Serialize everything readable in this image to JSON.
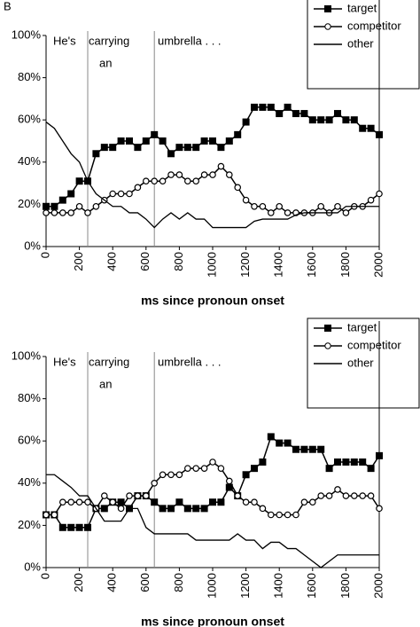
{
  "panel_label": "B",
  "chart_data": [
    {
      "type": "line",
      "annotations": [
        "He's",
        "carrying",
        "an",
        "umbrella . . ."
      ],
      "vlines": [
        250,
        650
      ],
      "x_label": "ms since pronoun onset",
      "x": [
        0,
        50,
        100,
        150,
        200,
        250,
        300,
        350,
        400,
        450,
        500,
        550,
        600,
        650,
        700,
        750,
        800,
        850,
        900,
        950,
        1000,
        1050,
        1100,
        1150,
        1200,
        1250,
        1300,
        1350,
        1400,
        1450,
        1500,
        1550,
        1600,
        1650,
        1700,
        1750,
        1800,
        1850,
        1900,
        1950,
        2000
      ],
      "xlim": [
        0,
        2000
      ],
      "xticks": [
        0,
        200,
        400,
        600,
        800,
        1000,
        1200,
        1400,
        1600,
        1800,
        2000
      ],
      "ylim": [
        0,
        100
      ],
      "yticks": [
        {
          "value": 0,
          "label": "0%"
        },
        {
          "value": 20,
          "label": "20%"
        },
        {
          "value": 40,
          "label": "40%"
        },
        {
          "value": 60,
          "label": "60%"
        },
        {
          "value": 80,
          "label": "80%"
        },
        {
          "value": 100,
          "label": "100%"
        }
      ],
      "series": [
        {
          "name": "target",
          "color": "#000000",
          "marker": "square",
          "values": [
            19,
            19,
            22,
            25,
            31,
            31,
            44,
            47,
            47,
            50,
            50,
            47,
            50,
            53,
            50,
            44,
            47,
            47,
            47,
            50,
            50,
            47,
            50,
            53,
            59,
            66,
            66,
            66,
            63,
            66,
            63,
            63,
            60,
            60,
            60,
            63,
            60,
            60,
            56,
            56,
            53
          ]
        },
        {
          "name": "competitor",
          "color": "#000000",
          "marker": "circle",
          "values": [
            16,
            16,
            16,
            16,
            19,
            16,
            19,
            22,
            25,
            25,
            25,
            28,
            31,
            31,
            31,
            34,
            34,
            31,
            31,
            34,
            34,
            38,
            34,
            28,
            22,
            19,
            19,
            16,
            19,
            16,
            16,
            16,
            16,
            19,
            16,
            19,
            16,
            19,
            19,
            22,
            25
          ]
        },
        {
          "name": "other",
          "color": "#000000",
          "marker": null,
          "values": [
            59,
            56,
            50,
            44,
            40,
            31,
            25,
            22,
            19,
            19,
            16,
            16,
            13,
            9,
            13,
            16,
            13,
            16,
            13,
            13,
            9,
            9,
            9,
            9,
            9,
            12,
            13,
            13,
            13,
            13,
            15,
            16,
            16,
            16,
            16,
            16,
            19,
            19,
            19,
            19,
            19
          ]
        }
      ]
    },
    {
      "type": "line",
      "annotations": [
        "He's",
        "carrying",
        "an",
        "umbrella . . ."
      ],
      "vlines": [
        250,
        650
      ],
      "x_label": "ms since pronoun onset",
      "x": [
        0,
        50,
        100,
        150,
        200,
        250,
        300,
        350,
        400,
        450,
        500,
        550,
        600,
        650,
        700,
        750,
        800,
        850,
        900,
        950,
        1000,
        1050,
        1100,
        1150,
        1200,
        1250,
        1300,
        1350,
        1400,
        1450,
        1500,
        1550,
        1600,
        1650,
        1700,
        1750,
        1800,
        1850,
        1900,
        1950,
        2000
      ],
      "xlim": [
        0,
        2000
      ],
      "xticks": [
        0,
        200,
        400,
        600,
        800,
        1000,
        1200,
        1400,
        1600,
        1800,
        2000
      ],
      "ylim": [
        0,
        100
      ],
      "yticks": [
        {
          "value": 0,
          "label": "0%"
        },
        {
          "value": 20,
          "label": "20%"
        },
        {
          "value": 40,
          "label": "40%"
        },
        {
          "value": 60,
          "label": "60%"
        },
        {
          "value": 80,
          "label": "80%"
        },
        {
          "value": 100,
          "label": "100%"
        }
      ],
      "series": [
        {
          "name": "target",
          "color": "#000000",
          "marker": "square",
          "values": [
            25,
            25,
            19,
            19,
            19,
            19,
            28,
            28,
            31,
            31,
            28,
            34,
            34,
            31,
            28,
            28,
            31,
            28,
            28,
            28,
            31,
            31,
            38,
            34,
            44,
            47,
            50,
            62,
            59,
            59,
            56,
            56,
            56,
            56,
            47,
            50,
            50,
            50,
            50,
            47,
            53
          ]
        },
        {
          "name": "competitor",
          "color": "#000000",
          "marker": "circle",
          "values": [
            25,
            25,
            31,
            31,
            31,
            31,
            28,
            34,
            31,
            28,
            34,
            34,
            34,
            40,
            44,
            44,
            44,
            47,
            47,
            47,
            50,
            47,
            41,
            34,
            31,
            31,
            28,
            25,
            25,
            25,
            25,
            31,
            31,
            34,
            34,
            37,
            34,
            34,
            34,
            34,
            28
          ]
        },
        {
          "name": "other",
          "color": "#000000",
          "marker": null,
          "values": [
            44,
            44,
            41,
            38,
            34,
            34,
            28,
            22,
            22,
            22,
            28,
            28,
            19,
            16,
            16,
            16,
            16,
            16,
            13,
            13,
            13,
            13,
            13,
            16,
            13,
            13,
            9,
            12,
            12,
            9,
            9,
            6,
            3,
            0,
            3,
            6,
            6,
            6,
            6,
            6,
            6
          ]
        }
      ]
    }
  ]
}
